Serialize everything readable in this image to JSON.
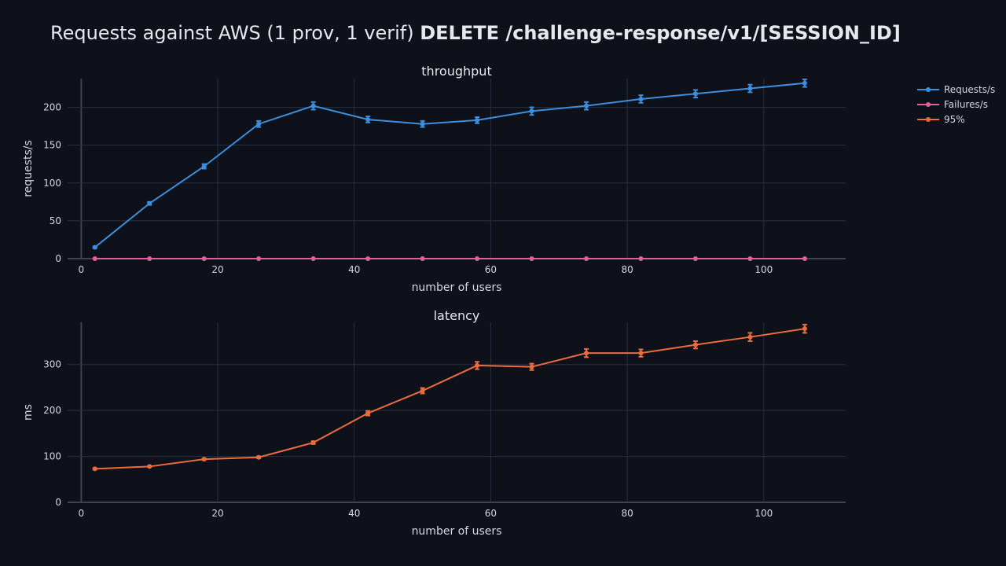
{
  "page": {
    "title_prefix": "Requests against AWS (1 prov, 1 verif) ",
    "title_bold": "DELETE /challenge-response/v1/[SESSION_ID]"
  },
  "legend": [
    {
      "label": "Requests/s",
      "color": "#3b8fde"
    },
    {
      "label": "Failures/s",
      "color": "#e0609f"
    },
    {
      "label": "95%",
      "color": "#ea6c3e"
    }
  ],
  "chart_data": [
    {
      "type": "line",
      "title": "throughput",
      "xlabel": "number of users",
      "ylabel": "requests/s",
      "xlim": [
        -2,
        112
      ],
      "ylim": [
        0,
        238
      ],
      "x_ticks": [
        0,
        20,
        40,
        60,
        80,
        100
      ],
      "y_ticks": [
        0,
        50,
        100,
        150,
        200
      ],
      "x": [
        2,
        10,
        18,
        26,
        34,
        42,
        50,
        58,
        66,
        74,
        82,
        90,
        98,
        106
      ],
      "series": [
        {
          "name": "Requests/s",
          "color": "#3b8fde",
          "values": [
            15,
            73,
            122,
            178,
            202,
            184,
            178,
            183,
            195,
            202,
            211,
            218,
            225,
            232
          ],
          "error": [
            1,
            2,
            3,
            4,
            5,
            4,
            4,
            4,
            5,
            5,
            5,
            5,
            5,
            5
          ]
        },
        {
          "name": "Failures/s",
          "color": "#e0609f",
          "values": [
            0,
            0,
            0,
            0,
            0,
            0,
            0,
            0,
            0,
            0,
            0,
            0,
            0,
            0
          ],
          "error": [
            0,
            0,
            0,
            0,
            0,
            0,
            0,
            0,
            0,
            0,
            0,
            0,
            0,
            0
          ]
        }
      ]
    },
    {
      "type": "line",
      "title": "latency",
      "xlabel": "number of users",
      "ylabel": "ms",
      "xlim": [
        -2,
        112
      ],
      "ylim": [
        0,
        392
      ],
      "x_ticks": [
        0,
        20,
        40,
        60,
        80,
        100
      ],
      "y_ticks": [
        0,
        100,
        200,
        300
      ],
      "x": [
        2,
        10,
        18,
        26,
        34,
        42,
        50,
        58,
        66,
        74,
        82,
        90,
        98,
        106
      ],
      "series": [
        {
          "name": "95%",
          "color": "#ea6c3e",
          "values": [
            73,
            78,
            94,
            98,
            130,
            194,
            243,
            298,
            295,
            325,
            325,
            343,
            360,
            378
          ],
          "error": [
            1,
            1,
            2,
            2,
            3,
            5,
            6,
            8,
            7,
            9,
            8,
            8,
            9,
            9
          ]
        }
      ]
    }
  ]
}
